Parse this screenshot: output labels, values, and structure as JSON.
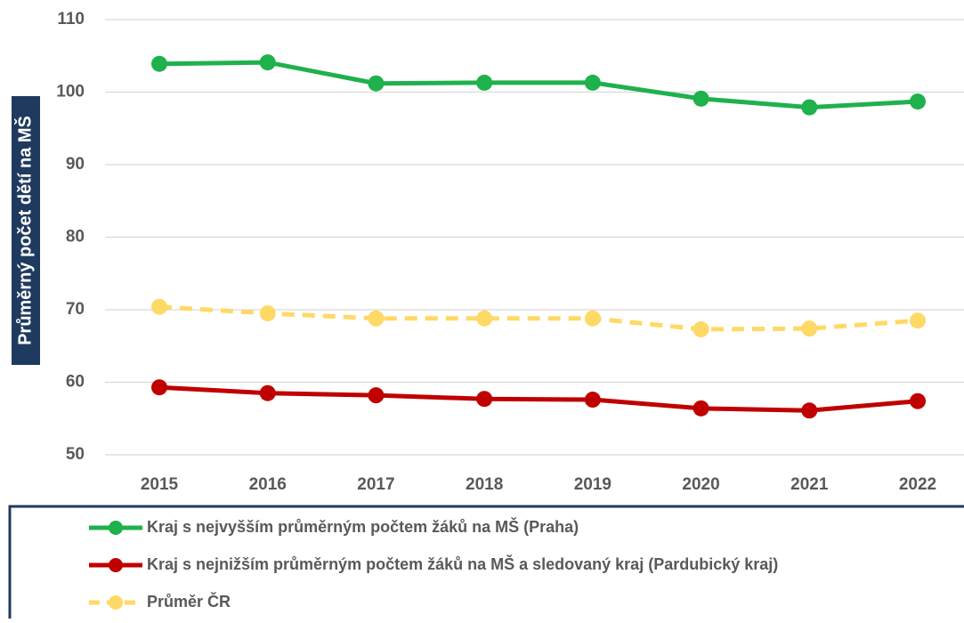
{
  "chart_data": {
    "type": "line",
    "y_axis_label": "Průměrný počet dětí na MŠ",
    "categories": [
      "2015",
      "2016",
      "2017",
      "2018",
      "2019",
      "2020",
      "2021",
      "2022"
    ],
    "series": [
      {
        "name": "Kraj s nejvyšším průměrným počtem žáků na MŠ (Praha)",
        "color": "#1fb14c",
        "line_style": "solid",
        "values": [
          103.9,
          104.1,
          101.2,
          101.3,
          101.3,
          99.1,
          97.9,
          98.7
        ]
      },
      {
        "name": "Kraj s nejnižším průměrným počtem žáků na MŠ a sledovaný kraj (Pardubický kraj)",
        "color": "#c00000",
        "line_style": "solid",
        "values": [
          59.3,
          58.5,
          58.2,
          57.7,
          57.6,
          56.4,
          56.1,
          57.4
        ]
      },
      {
        "name": "Průměr ČR",
        "color": "#ffd966",
        "line_style": "dashed",
        "values": [
          70.4,
          69.5,
          68.8,
          68.8,
          68.8,
          67.3,
          67.4,
          68.5
        ]
      }
    ],
    "ylim": [
      50,
      110
    ],
    "yticks": [
      50,
      60,
      70,
      80,
      90,
      100,
      110
    ],
    "grid": true
  }
}
